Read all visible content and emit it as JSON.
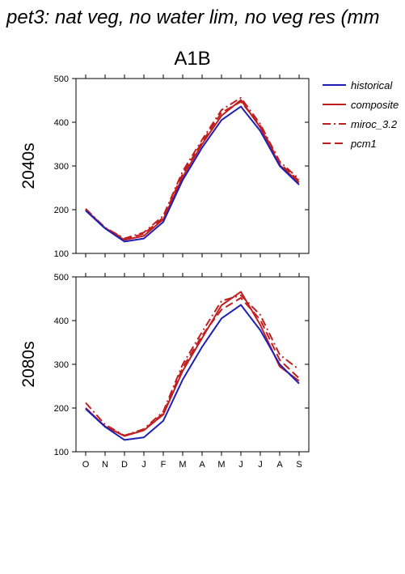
{
  "page_title": "pet3: nat veg, no water lim, no veg res (mm",
  "scenario_title": "A1B",
  "legend": [
    {
      "name": "historical",
      "color": "#1f1fb4",
      "dash": "solid"
    },
    {
      "name": "composite",
      "color": "#c01f1f",
      "dash": "solid"
    },
    {
      "name": "miroc_3.2",
      "color": "#c01f1f",
      "dash": "dashdot"
    },
    {
      "name": "pcm1",
      "color": "#c01f1f",
      "dash": "dashed"
    }
  ],
  "chart_data": [
    {
      "type": "line",
      "ylabel": "2040s",
      "categories": [
        "O",
        "N",
        "D",
        "J",
        "F",
        "M",
        "A",
        "M",
        "J",
        "J",
        "A",
        "S"
      ],
      "ylim": [
        100,
        500
      ],
      "yticks": [
        "100",
        "200",
        "300",
        "400",
        "500"
      ],
      "series": [
        {
          "name": "historical",
          "values": [
            198,
            157,
            127,
            134,
            172,
            268,
            342,
            405,
            436,
            380,
            300,
            257
          ]
        },
        {
          "name": "composite",
          "values": [
            200,
            158,
            131,
            140,
            178,
            275,
            350,
            415,
            451,
            388,
            302,
            262
          ]
        },
        {
          "name": "miroc_3.2",
          "values": [
            202,
            159,
            134,
            148,
            186,
            288,
            360,
            428,
            456,
            396,
            310,
            270
          ]
        },
        {
          "name": "pcm1",
          "values": [
            200,
            158,
            133,
            145,
            182,
            282,
            355,
            422,
            447,
            392,
            306,
            266
          ]
        }
      ]
    },
    {
      "type": "line",
      "ylabel": "2080s",
      "categories": [
        "O",
        "N",
        "D",
        "J",
        "F",
        "M",
        "A",
        "M",
        "J",
        "J",
        "A",
        "S"
      ],
      "ylim": [
        100,
        500
      ],
      "yticks": [
        "100",
        "200",
        "300",
        "400",
        "500"
      ],
      "series": [
        {
          "name": "historical",
          "values": [
            198,
            157,
            127,
            133,
            171,
            265,
            340,
            405,
            436,
            378,
            300,
            256
          ]
        },
        {
          "name": "composite",
          "values": [
            200,
            158,
            136,
            149,
            185,
            285,
            360,
            435,
            466,
            390,
            295,
            262
          ]
        },
        {
          "name": "miroc_3.2",
          "values": [
            212,
            162,
            137,
            152,
            192,
            300,
            374,
            445,
            458,
            413,
            322,
            288
          ]
        },
        {
          "name": "pcm1",
          "values": [
            200,
            157,
            137,
            150,
            188,
            292,
            366,
            425,
            452,
            402,
            310,
            268
          ]
        }
      ]
    }
  ]
}
